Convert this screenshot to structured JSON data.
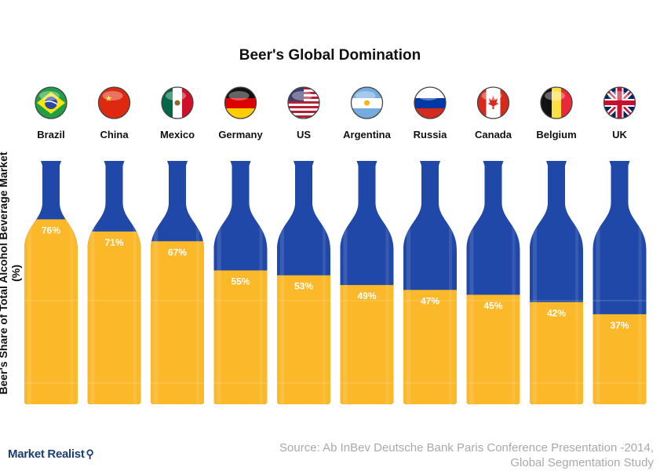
{
  "chart_data": {
    "type": "bar",
    "title": "Beer's Global Domination",
    "ylabel": "Beer's Share of Total Alcohol Beverage Market (%)",
    "xlabel": "",
    "ylim": [
      0,
      100
    ],
    "categories": [
      "Brazil",
      "China",
      "Mexico",
      "Germany",
      "US",
      "Argentina",
      "Russia",
      "Canada",
      "Belgium",
      "UK"
    ],
    "values": [
      76,
      71,
      67,
      55,
      53,
      49,
      47,
      45,
      42,
      37
    ],
    "value_labels": [
      "76%",
      "71%",
      "67%",
      "55%",
      "53%",
      "49%",
      "47%",
      "45%",
      "42%",
      "37%"
    ],
    "flags": [
      "brazil-flag-icon",
      "china-flag-icon",
      "mexico-flag-icon",
      "germany-flag-icon",
      "us-flag-icon",
      "argentina-flag-icon",
      "russia-flag-icon",
      "canada-flag-icon",
      "belgium-flag-icon",
      "uk-flag-icon"
    ],
    "colors": {
      "beer": "#fbb829",
      "beer_highlight": "#fdd36b",
      "bottle": "#1f48a8",
      "bottle_highlight": "#3a64c2"
    }
  },
  "source": {
    "line1": "Source: Ab InBev Deutsche Bank Paris Conference Presentation -2014,",
    "line2": "Global Segmentation Study"
  },
  "brand": {
    "name": "Market Realist",
    "icon": "magnifier-icon"
  }
}
